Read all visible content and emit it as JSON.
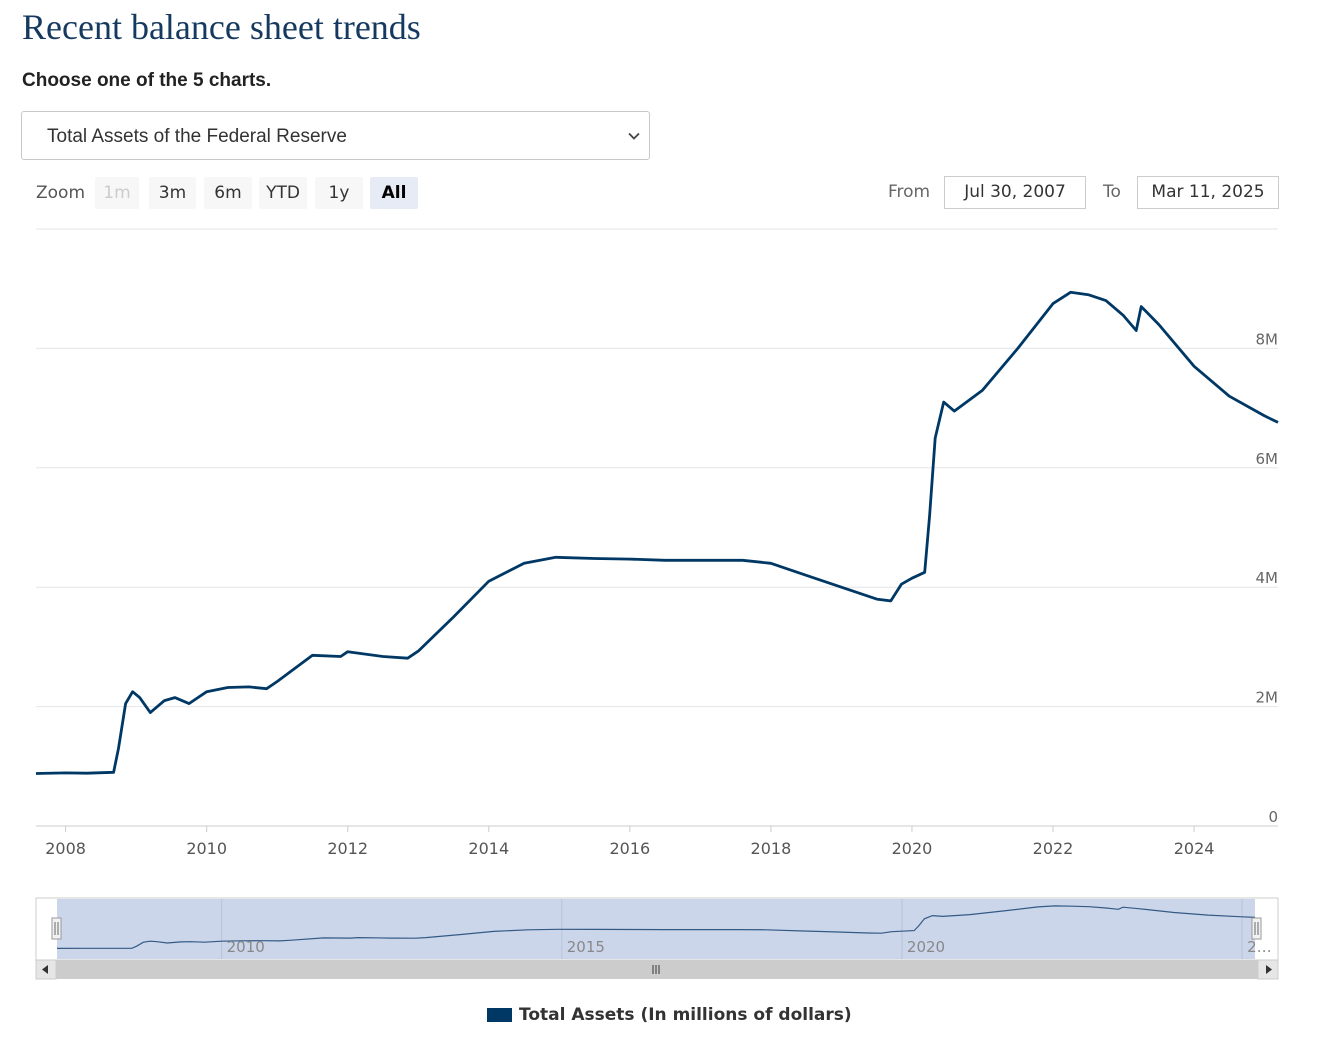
{
  "header": {
    "title": "Recent balance sheet trends",
    "subtitle": "Choose one of the 5 charts."
  },
  "selector": {
    "selected": "Total Assets of the Federal Reserve"
  },
  "zoom": {
    "label": "Zoom",
    "buttons": [
      {
        "label": "1m",
        "state": "disabled"
      },
      {
        "label": "3m",
        "state": "normal"
      },
      {
        "label": "6m",
        "state": "normal"
      },
      {
        "label": "YTD",
        "state": "normal"
      },
      {
        "label": "1y",
        "state": "normal"
      },
      {
        "label": "All",
        "state": "active"
      }
    ]
  },
  "range": {
    "from_label": "From",
    "from_value": "Jul 30, 2007",
    "to_label": "To",
    "to_value": "Mar 11, 2025"
  },
  "colors": {
    "series": "#003865",
    "navigator_fill": "#ccd6eb",
    "grid": "#e6e6e6"
  },
  "chart_data": {
    "type": "line",
    "x_axis": {
      "min": 2007.58,
      "max": 2025.19,
      "ticks": [
        "2008",
        "2010",
        "2012",
        "2014",
        "2016",
        "2018",
        "2020",
        "2022",
        "2024"
      ]
    },
    "y_axis": {
      "min": 0,
      "max": 10000000,
      "ticks": [
        "0",
        "2M",
        "4M",
        "6M",
        "8M"
      ],
      "tick_values": [
        0,
        2000000,
        4000000,
        6000000,
        8000000
      ]
    },
    "navigator_ticks": [
      "2010",
      "2015",
      "2020",
      "2…"
    ],
    "grid": true,
    "series": [
      {
        "name": "Total Assets (In millions of dollars)",
        "points": [
          [
            2007.58,
            880000
          ],
          [
            2008.0,
            890000
          ],
          [
            2008.3,
            885000
          ],
          [
            2008.68,
            900000
          ],
          [
            2008.75,
            1300000
          ],
          [
            2008.85,
            2050000
          ],
          [
            2008.95,
            2250000
          ],
          [
            2009.05,
            2150000
          ],
          [
            2009.2,
            1900000
          ],
          [
            2009.4,
            2100000
          ],
          [
            2009.55,
            2150000
          ],
          [
            2009.75,
            2050000
          ],
          [
            2010.0,
            2250000
          ],
          [
            2010.3,
            2320000
          ],
          [
            2010.6,
            2330000
          ],
          [
            2010.85,
            2300000
          ],
          [
            2011.0,
            2420000
          ],
          [
            2011.5,
            2860000
          ],
          [
            2011.9,
            2840000
          ],
          [
            2012.0,
            2920000
          ],
          [
            2012.5,
            2840000
          ],
          [
            2012.85,
            2810000
          ],
          [
            2013.0,
            2930000
          ],
          [
            2013.5,
            3500000
          ],
          [
            2014.0,
            4100000
          ],
          [
            2014.5,
            4400000
          ],
          [
            2014.95,
            4500000
          ],
          [
            2015.5,
            4480000
          ],
          [
            2016.0,
            4470000
          ],
          [
            2016.5,
            4450000
          ],
          [
            2017.0,
            4450000
          ],
          [
            2017.6,
            4450000
          ],
          [
            2018.0,
            4400000
          ],
          [
            2018.5,
            4200000
          ],
          [
            2019.0,
            4000000
          ],
          [
            2019.5,
            3800000
          ],
          [
            2019.7,
            3770000
          ],
          [
            2019.85,
            4050000
          ],
          [
            2020.0,
            4150000
          ],
          [
            2020.18,
            4250000
          ],
          [
            2020.25,
            5200000
          ],
          [
            2020.33,
            6500000
          ],
          [
            2020.45,
            7100000
          ],
          [
            2020.6,
            6950000
          ],
          [
            2021.0,
            7300000
          ],
          [
            2021.5,
            8000000
          ],
          [
            2022.0,
            8750000
          ],
          [
            2022.25,
            8940000
          ],
          [
            2022.5,
            8900000
          ],
          [
            2022.75,
            8800000
          ],
          [
            2023.0,
            8550000
          ],
          [
            2023.18,
            8300000
          ],
          [
            2023.25,
            8700000
          ],
          [
            2023.5,
            8400000
          ],
          [
            2024.0,
            7700000
          ],
          [
            2024.5,
            7200000
          ],
          [
            2025.0,
            6870000
          ],
          [
            2025.19,
            6760000
          ]
        ]
      }
    ]
  }
}
